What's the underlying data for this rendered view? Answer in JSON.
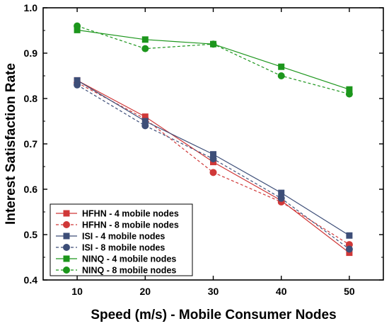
{
  "chart_data": {
    "type": "line",
    "xlabel": "Speed (m/s) - Mobile Consumer Nodes",
    "ylabel": "Interest Satisfaction Rate",
    "x": [
      10,
      20,
      30,
      40,
      50
    ],
    "xticks": [
      "10",
      "20",
      "30",
      "40",
      "50"
    ],
    "yticks": [
      "0.4",
      "0.5",
      "0.6",
      "0.7",
      "0.8",
      "0.9",
      "1.0"
    ],
    "xlim": [
      5,
      55
    ],
    "ylim": [
      0.4,
      1.0
    ],
    "grid": false,
    "legend_position": "bottom-left",
    "series": [
      {
        "name": "HFHN - 4 mobile nodes",
        "values": [
          0.84,
          0.76,
          0.66,
          0.575,
          0.46
        ],
        "color": "#d03838",
        "marker": "square",
        "line": "solid"
      },
      {
        "name": "HFHN - 8 mobile nodes",
        "values": [
          0.835,
          0.755,
          0.637,
          0.572,
          0.478
        ],
        "color": "#d03838",
        "marker": "circle",
        "line": "dashed"
      },
      {
        "name": "ISI - 4 mobile nodes",
        "values": [
          0.84,
          0.75,
          0.677,
          0.592,
          0.498
        ],
        "color": "#3d4e78",
        "marker": "square",
        "line": "solid"
      },
      {
        "name": "ISI - 8 mobile nodes",
        "values": [
          0.83,
          0.74,
          0.667,
          0.58,
          0.468
        ],
        "color": "#3d4e78",
        "marker": "circle",
        "line": "dashed"
      },
      {
        "name": "NINQ - 4 mobile nodes",
        "values": [
          0.951,
          0.93,
          0.92,
          0.87,
          0.82
        ],
        "color": "#1c961c",
        "marker": "square",
        "line": "solid"
      },
      {
        "name": "NINQ - 8 mobile nodes",
        "values": [
          0.96,
          0.91,
          0.92,
          0.85,
          0.81
        ],
        "color": "#1c961c",
        "marker": "circle",
        "line": "dashed"
      }
    ]
  }
}
